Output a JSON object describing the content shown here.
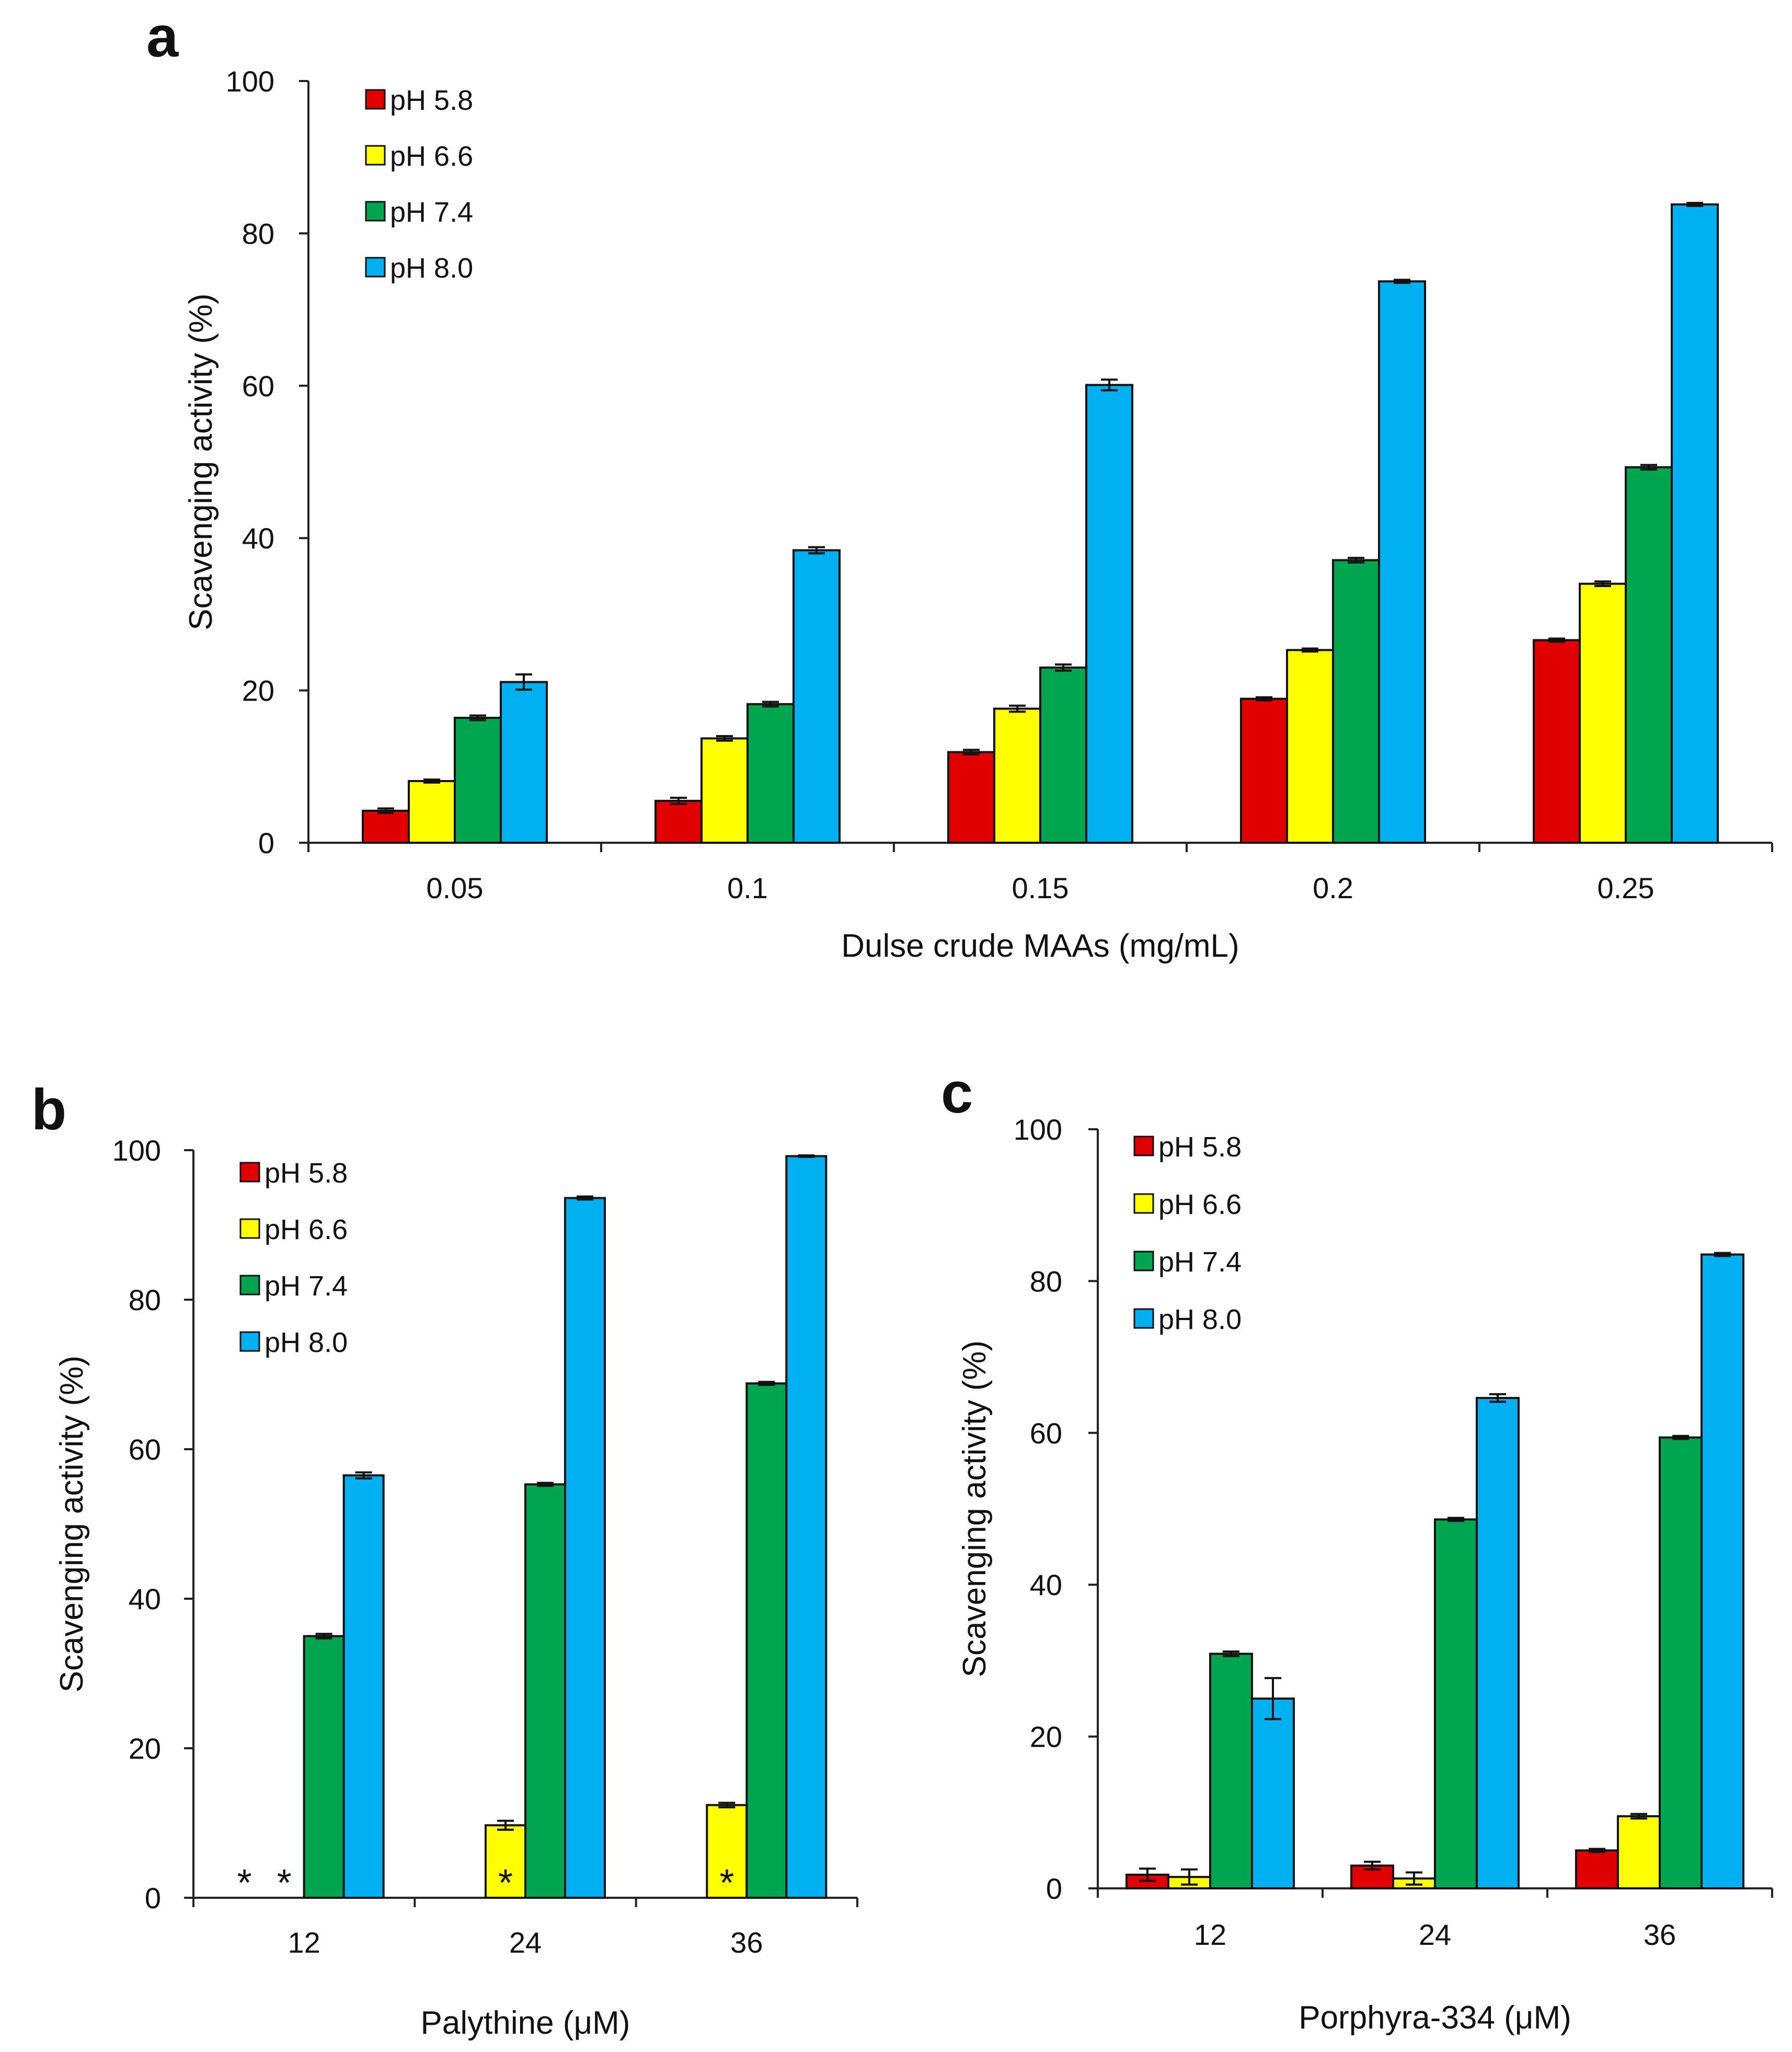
{
  "colors": {
    "pH 5.8": "#e00000",
    "pH 6.6": "#ffff00",
    "pH 7.4": "#00a550",
    "pH 8.0": "#00b0f0"
  },
  "chart_data": [
    {
      "type": "bar",
      "panel": "a",
      "xlabel": "Dulse crude MAAs (mg/mL)",
      "ylabel": "Scavenging activity (%)",
      "ylim": [
        0,
        100
      ],
      "yticks": [
        "0",
        "20",
        "40",
        "60",
        "80",
        "100"
      ],
      "legend_position": "top-left",
      "categories": [
        "0.05",
        "0.1",
        "0.15",
        "0.2",
        "0.25"
      ],
      "series": [
        {
          "name": "pH 5.8",
          "values": [
            4.2,
            5.5,
            11.9,
            18.9,
            26.6
          ],
          "errors": [
            0.3,
            0.4,
            0.3,
            0.2,
            0.2
          ]
        },
        {
          "name": "pH 6.6",
          "values": [
            8.1,
            13.7,
            17.6,
            25.3,
            34.0
          ],
          "errors": [
            0.2,
            0.3,
            0.4,
            0.2,
            0.3
          ]
        },
        {
          "name": "pH 7.4",
          "values": [
            16.4,
            18.2,
            23.0,
            37.1,
            49.3
          ],
          "errors": [
            0.3,
            0.3,
            0.4,
            0.3,
            0.3
          ]
        },
        {
          "name": "pH 8.0",
          "values": [
            21.1,
            38.4,
            60.1,
            73.7,
            83.8
          ],
          "errors": [
            1.0,
            0.4,
            0.7,
            0.2,
            0.2
          ]
        }
      ]
    },
    {
      "type": "bar",
      "panel": "b",
      "xlabel": "Palythine (μM)",
      "ylabel": "Scavenging activity (%)",
      "ylim": [
        0,
        100
      ],
      "yticks": [
        "0",
        "20",
        "40",
        "60",
        "80",
        "100"
      ],
      "legend_position": "top-left",
      "categories": [
        "12",
        "24",
        "36"
      ],
      "series": [
        {
          "name": "pH 5.8",
          "values": [
            0,
            0,
            0
          ],
          "errors": [
            0,
            0,
            0
          ],
          "markers": [
            "*",
            "",
            ""
          ]
        },
        {
          "name": "pH 6.6",
          "values": [
            0,
            9.7,
            12.4
          ],
          "errors": [
            0,
            0.6,
            0.3
          ],
          "markers": [
            "*",
            "*",
            "*"
          ]
        },
        {
          "name": "pH 7.4",
          "values": [
            35.0,
            55.3,
            68.8
          ],
          "errors": [
            0.3,
            0.2,
            0.2
          ],
          "markers": [
            "",
            "",
            ""
          ]
        },
        {
          "name": "pH 8.0",
          "values": [
            56.5,
            93.6,
            99.2
          ],
          "errors": [
            0.4,
            0.2,
            0.1
          ],
          "markers": [
            "",
            "",
            ""
          ]
        }
      ]
    },
    {
      "type": "bar",
      "panel": "c",
      "xlabel": "Porphyra-334 (μM)",
      "ylabel": "Scavenging activity (%)",
      "ylim": [
        0,
        100
      ],
      "yticks": [
        "0",
        "20",
        "40",
        "60",
        "80",
        "100"
      ],
      "legend_position": "top-left",
      "categories": [
        "12",
        "24",
        "36"
      ],
      "series": [
        {
          "name": "pH 5.8",
          "values": [
            1.8,
            3.0,
            5.0
          ],
          "errors": [
            0.8,
            0.5,
            0.2
          ]
        },
        {
          "name": "pH 6.6",
          "values": [
            1.5,
            1.3,
            9.5
          ],
          "errors": [
            1.0,
            0.8,
            0.3
          ]
        },
        {
          "name": "pH 7.4",
          "values": [
            30.9,
            48.6,
            59.4
          ],
          "errors": [
            0.3,
            0.2,
            0.2
          ]
        },
        {
          "name": "pH 8.0",
          "values": [
            25.0,
            64.6,
            83.5
          ],
          "errors": [
            2.7,
            0.5,
            0.2
          ]
        }
      ]
    }
  ]
}
